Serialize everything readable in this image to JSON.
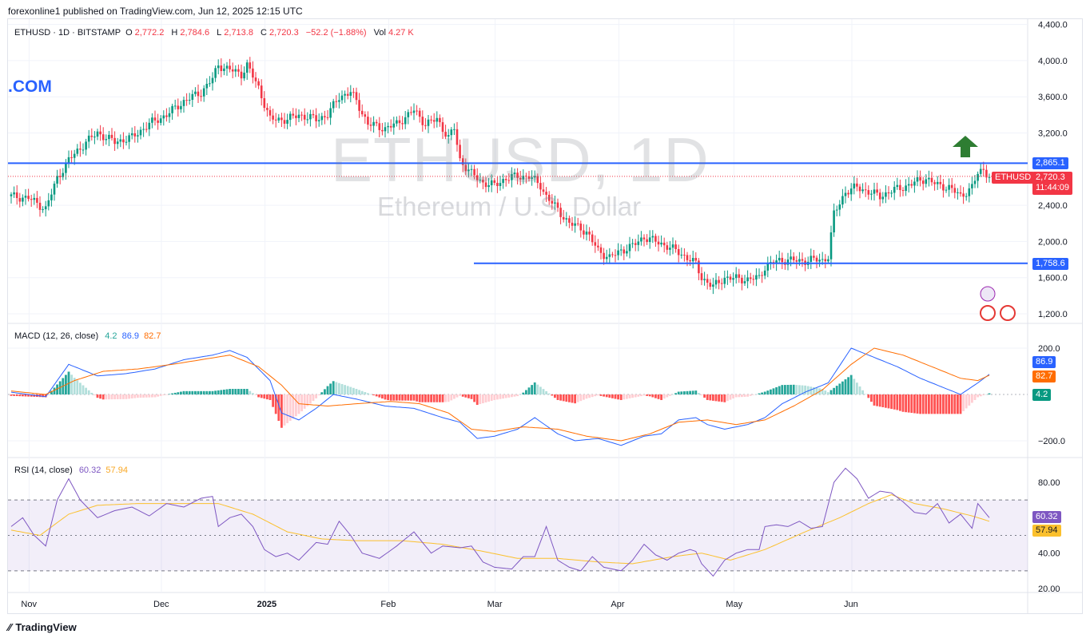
{
  "header": {
    "published": "forexonline1 published on TradingView.com, Jun 12, 2025 12:15 UTC"
  },
  "legend": {
    "symbol": "ETHUSD · 1D · BITSTAMP",
    "o_label": "O",
    "o": "2,772.2",
    "h_label": "H",
    "h": "2,784.6",
    "l_label": "L",
    "l": "2,713.8",
    "c_label": "C",
    "c": "2,720.3",
    "change": "−52.2 (−1.88%)",
    "vol_label": "Vol",
    "vol": "4.27 K"
  },
  "watermark": {
    "symbol": "ETHUSD, 1D",
    "name": "Ethereum / U.S. Dollar"
  },
  "brand_fragment": ".COM",
  "macd_legend": {
    "label": "MACD (12, 26, close)",
    "hist": "4.2",
    "macd": "86.9",
    "signal": "82.7"
  },
  "rsi_legend": {
    "label": "RSI (14, close)",
    "rsi": "60.32",
    "ma": "57.94"
  },
  "footer": {
    "brand": "TradingView"
  },
  "price_tags": {
    "resistance": "2,865.1",
    "support": "1,758.6",
    "symbol_tag": "ETHUSD",
    "last": "2,720.3",
    "countdown": "11:44:09",
    "macd": "86.9",
    "signal": "82.7",
    "hist": "4.2",
    "rsi": "60.32",
    "rsi_ma": "57.94"
  },
  "colors": {
    "up": "#089981",
    "down": "#f23645",
    "blue_line": "#2962ff",
    "macd": "#2962ff",
    "signal": "#ff6d00",
    "rsi": "#7e57c2",
    "rsi_ma": "#fbc02d",
    "arrow": "#2e7d32"
  },
  "chart_data": [
    {
      "type": "candlestick",
      "title": "ETHUSD · 1D · BITSTAMP",
      "y_ticks": [
        "4,400.0",
        "4,000.0",
        "3,600.0",
        "3,200.0",
        "2,400.0",
        "2,000.0",
        "1,600.0",
        "1,200.0"
      ],
      "y_tick_values": [
        4400,
        4000,
        3600,
        3200,
        2400,
        2000,
        1600,
        1200
      ],
      "x_ticks": [
        "Nov",
        "Dec",
        "2025",
        "Feb",
        "Mar",
        "Apr",
        "May",
        "Jun"
      ],
      "ylim": [
        1000,
        4500
      ],
      "horizontal_lines": [
        2865.1,
        1758.6
      ],
      "last_price": 2720.3,
      "close_path": [
        [
          0,
          2500
        ],
        [
          6,
          2480
        ],
        [
          12,
          2360
        ],
        [
          16,
          2700
        ],
        [
          20,
          2900
        ],
        [
          26,
          3100
        ],
        [
          30,
          3200
        ],
        [
          36,
          3100
        ],
        [
          42,
          3150
        ],
        [
          48,
          3300
        ],
        [
          54,
          3400
        ],
        [
          60,
          3550
        ],
        [
          66,
          3650
        ],
        [
          70,
          3800
        ],
        [
          72,
          3950
        ],
        [
          76,
          3900
        ],
        [
          80,
          3850
        ],
        [
          82,
          3950
        ],
        [
          86,
          3700
        ],
        [
          90,
          3350
        ],
        [
          96,
          3350
        ],
        [
          100,
          3400
        ],
        [
          106,
          3350
        ],
        [
          110,
          3400
        ],
        [
          114,
          3600
        ],
        [
          118,
          3650
        ],
        [
          120,
          3550
        ],
        [
          124,
          3300
        ],
        [
          130,
          3250
        ],
        [
          134,
          3300
        ],
        [
          140,
          3450
        ],
        [
          144,
          3300
        ],
        [
          148,
          3350
        ],
        [
          152,
          3150
        ],
        [
          154,
          3250
        ],
        [
          156,
          2900
        ],
        [
          160,
          2750
        ],
        [
          164,
          2650
        ],
        [
          168,
          2620
        ],
        [
          172,
          2700
        ],
        [
          176,
          2720
        ],
        [
          180,
          2720
        ],
        [
          184,
          2620
        ],
        [
          186,
          2500
        ],
        [
          190,
          2350
        ],
        [
          194,
          2200
        ],
        [
          198,
          2150
        ],
        [
          200,
          2100
        ],
        [
          204,
          1900
        ],
        [
          208,
          1820
        ],
        [
          212,
          1900
        ],
        [
          216,
          1950
        ],
        [
          220,
          2050
        ],
        [
          224,
          2000
        ],
        [
          228,
          1950
        ],
        [
          232,
          1880
        ],
        [
          236,
          1800
        ],
        [
          238,
          1750
        ],
        [
          240,
          1600
        ],
        [
          244,
          1500
        ],
        [
          248,
          1600
        ],
        [
          252,
          1590
        ],
        [
          256,
          1580
        ],
        [
          260,
          1600
        ],
        [
          262,
          1720
        ],
        [
          266,
          1780
        ],
        [
          270,
          1800
        ],
        [
          274,
          1780
        ],
        [
          278,
          1800
        ],
        [
          282,
          1790
        ],
        [
          284,
          1840
        ],
        [
          286,
          2300
        ],
        [
          290,
          2550
        ],
        [
          294,
          2600
        ],
        [
          298,
          2550
        ],
        [
          302,
          2500
        ],
        [
          306,
          2560
        ],
        [
          310,
          2600
        ],
        [
          314,
          2650
        ],
        [
          318,
          2700
        ],
        [
          322,
          2620
        ],
        [
          326,
          2600
        ],
        [
          330,
          2500
        ],
        [
          334,
          2600
        ],
        [
          336,
          2750
        ],
        [
          338,
          2800
        ],
        [
          340,
          2720
        ]
      ]
    },
    {
      "type": "macd",
      "title": "MACD (12, 26, close)",
      "y_ticks": [
        "200.0",
        "−200.0"
      ],
      "y_tick_values": [
        200,
        -200
      ],
      "ylim": [
        -260,
        260
      ],
      "macd_last": 86.9,
      "signal_last": 82.7,
      "hist_last": 4.2,
      "macd_path": [
        [
          0,
          10
        ],
        [
          12,
          -10
        ],
        [
          20,
          130
        ],
        [
          30,
          80
        ],
        [
          40,
          90
        ],
        [
          50,
          110
        ],
        [
          60,
          150
        ],
        [
          70,
          170
        ],
        [
          76,
          190
        ],
        [
          82,
          160
        ],
        [
          90,
          60
        ],
        [
          94,
          -80
        ],
        [
          100,
          -110
        ],
        [
          106,
          -60
        ],
        [
          112,
          0
        ],
        [
          120,
          -20
        ],
        [
          130,
          -50
        ],
        [
          140,
          -60
        ],
        [
          150,
          -100
        ],
        [
          156,
          -120
        ],
        [
          162,
          -190
        ],
        [
          168,
          -180
        ],
        [
          176,
          -150
        ],
        [
          182,
          -100
        ],
        [
          190,
          -170
        ],
        [
          196,
          -200
        ],
        [
          204,
          -190
        ],
        [
          212,
          -220
        ],
        [
          220,
          -180
        ],
        [
          226,
          -170
        ],
        [
          232,
          -110
        ],
        [
          238,
          -100
        ],
        [
          242,
          -130
        ],
        [
          248,
          -150
        ],
        [
          256,
          -130
        ],
        [
          262,
          -100
        ],
        [
          268,
          -40
        ],
        [
          276,
          10
        ],
        [
          284,
          50
        ],
        [
          292,
          200
        ],
        [
          300,
          160
        ],
        [
          308,
          120
        ],
        [
          316,
          70
        ],
        [
          324,
          30
        ],
        [
          330,
          0
        ],
        [
          336,
          50
        ],
        [
          340,
          87
        ]
      ],
      "signal_path": [
        [
          0,
          15
        ],
        [
          12,
          0
        ],
        [
          22,
          60
        ],
        [
          32,
          100
        ],
        [
          44,
          110
        ],
        [
          56,
          130
        ],
        [
          66,
          150
        ],
        [
          76,
          170
        ],
        [
          86,
          120
        ],
        [
          94,
          40
        ],
        [
          100,
          -40
        ],
        [
          110,
          -50
        ],
        [
          120,
          -40
        ],
        [
          132,
          -30
        ],
        [
          142,
          -40
        ],
        [
          152,
          -80
        ],
        [
          160,
          -150
        ],
        [
          168,
          -160
        ],
        [
          178,
          -140
        ],
        [
          190,
          -150
        ],
        [
          200,
          -180
        ],
        [
          212,
          -200
        ],
        [
          222,
          -170
        ],
        [
          232,
          -120
        ],
        [
          242,
          -110
        ],
        [
          252,
          -130
        ],
        [
          262,
          -110
        ],
        [
          272,
          -50
        ],
        [
          282,
          20
        ],
        [
          292,
          130
        ],
        [
          300,
          200
        ],
        [
          310,
          170
        ],
        [
          320,
          120
        ],
        [
          330,
          70
        ],
        [
          336,
          60
        ],
        [
          340,
          83
        ]
      ]
    },
    {
      "type": "line",
      "title": "RSI (14, close)",
      "y_ticks": [
        "80.00",
        "40.00",
        "20.00"
      ],
      "y_tick_values": [
        80,
        40,
        20
      ],
      "ylim": [
        18,
        96
      ],
      "band": [
        30,
        70
      ],
      "rsi_last": 60.32,
      "ma_last": 57.94,
      "rsi_path": [
        [
          0,
          55
        ],
        [
          4,
          60
        ],
        [
          8,
          50
        ],
        [
          12,
          44
        ],
        [
          16,
          70
        ],
        [
          20,
          82
        ],
        [
          24,
          70
        ],
        [
          30,
          60
        ],
        [
          36,
          64
        ],
        [
          42,
          66
        ],
        [
          48,
          61
        ],
        [
          54,
          68
        ],
        [
          60,
          66
        ],
        [
          66,
          71
        ],
        [
          70,
          72
        ],
        [
          72,
          55
        ],
        [
          76,
          60
        ],
        [
          80,
          62
        ],
        [
          84,
          55
        ],
        [
          88,
          42
        ],
        [
          92,
          38
        ],
        [
          96,
          40
        ],
        [
          100,
          36
        ],
        [
          106,
          46
        ],
        [
          110,
          45
        ],
        [
          114,
          58
        ],
        [
          118,
          50
        ],
        [
          122,
          40
        ],
        [
          128,
          37
        ],
        [
          134,
          44
        ],
        [
          140,
          52
        ],
        [
          146,
          40
        ],
        [
          150,
          44
        ],
        [
          156,
          43
        ],
        [
          160,
          44
        ],
        [
          164,
          35
        ],
        [
          168,
          32
        ],
        [
          174,
          31
        ],
        [
          178,
          38
        ],
        [
          182,
          38
        ],
        [
          186,
          55
        ],
        [
          190,
          36
        ],
        [
          194,
          32
        ],
        [
          198,
          30
        ],
        [
          202,
          38
        ],
        [
          206,
          32
        ],
        [
          212,
          30
        ],
        [
          216,
          36
        ],
        [
          220,
          45
        ],
        [
          224,
          39
        ],
        [
          228,
          36
        ],
        [
          232,
          40
        ],
        [
          236,
          42
        ],
        [
          238,
          41
        ],
        [
          240,
          34
        ],
        [
          244,
          27
        ],
        [
          248,
          36
        ],
        [
          252,
          40
        ],
        [
          256,
          42
        ],
        [
          260,
          42
        ],
        [
          262,
          55
        ],
        [
          266,
          56
        ],
        [
          270,
          55
        ],
        [
          274,
          58
        ],
        [
          278,
          54
        ],
        [
          282,
          55
        ],
        [
          286,
          80
        ],
        [
          290,
          88
        ],
        [
          294,
          82
        ],
        [
          298,
          71
        ],
        [
          302,
          75
        ],
        [
          306,
          74
        ],
        [
          310,
          69
        ],
        [
          314,
          63
        ],
        [
          318,
          62
        ],
        [
          322,
          68
        ],
        [
          326,
          57
        ],
        [
          330,
          62
        ],
        [
          334,
          54
        ],
        [
          336,
          68
        ],
        [
          340,
          60
        ]
      ],
      "ma_path": [
        [
          0,
          53
        ],
        [
          10,
          50
        ],
        [
          20,
          62
        ],
        [
          30,
          67
        ],
        [
          44,
          68
        ],
        [
          60,
          68
        ],
        [
          72,
          68
        ],
        [
          84,
          62
        ],
        [
          96,
          52
        ],
        [
          108,
          48
        ],
        [
          120,
          47
        ],
        [
          136,
          47
        ],
        [
          150,
          45
        ],
        [
          164,
          41
        ],
        [
          176,
          37
        ],
        [
          190,
          37
        ],
        [
          204,
          35
        ],
        [
          216,
          34
        ],
        [
          230,
          38
        ],
        [
          240,
          40
        ],
        [
          250,
          36
        ],
        [
          262,
          42
        ],
        [
          276,
          52
        ],
        [
          288,
          60
        ],
        [
          298,
          68
        ],
        [
          306,
          73
        ],
        [
          314,
          68
        ],
        [
          324,
          65
        ],
        [
          334,
          61
        ],
        [
          340,
          58
        ]
      ]
    }
  ]
}
